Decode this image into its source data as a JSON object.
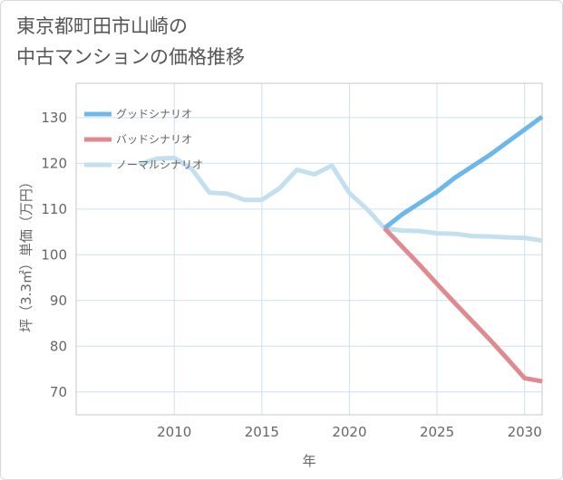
{
  "chart_data": {
    "type": "line",
    "title_lines": [
      "東京都町田市山崎の",
      "中古マンションの価格推移"
    ],
    "xlabel": "年",
    "ylabel": "坪（3.3㎡）単価（万円）",
    "xlim": [
      2004.4,
      2031.0
    ],
    "ylim": [
      65,
      137.5
    ],
    "xticks": [
      2010,
      2015,
      2020,
      2025,
      2030
    ],
    "yticks": [
      70,
      80,
      90,
      100,
      110,
      120,
      130
    ],
    "series": [
      {
        "name": "グッドシナリオ",
        "color": "#6cb8ec",
        "points": [
          [
            2022,
            105.8
          ],
          [
            2023,
            108.8
          ],
          [
            2024,
            111.3
          ],
          [
            2025,
            113.8
          ],
          [
            2026,
            116.8
          ],
          [
            2027,
            119.3
          ],
          [
            2028,
            121.8
          ],
          [
            2029,
            124.6
          ],
          [
            2030,
            127.4
          ],
          [
            2031,
            130.2
          ]
        ]
      },
      {
        "name": "バッドシナリオ",
        "color": "#e0898f",
        "points": [
          [
            2022,
            105.8
          ],
          [
            2023,
            101.8
          ],
          [
            2024,
            97.8
          ],
          [
            2025,
            93.6
          ],
          [
            2026,
            89.5
          ],
          [
            2027,
            85.5
          ],
          [
            2028,
            81.5
          ],
          [
            2029,
            77.3
          ],
          [
            2030,
            73.0
          ],
          [
            2031,
            72.3
          ]
        ]
      },
      {
        "name": "ノーマルシナリオ",
        "color": "#c4e0ef",
        "points": [
          [
            2008,
            119.8
          ],
          [
            2009,
            121.0
          ],
          [
            2010,
            121.2
          ],
          [
            2011,
            118.8
          ],
          [
            2012,
            113.6
          ],
          [
            2013,
            113.4
          ],
          [
            2014,
            112.0
          ],
          [
            2015,
            112.0
          ],
          [
            2016,
            114.5
          ],
          [
            2017,
            118.6
          ],
          [
            2018,
            117.6
          ],
          [
            2019,
            119.5
          ],
          [
            2020,
            113.5
          ],
          [
            2021,
            110.0
          ],
          [
            2022,
            105.8
          ],
          [
            2023,
            105.3
          ],
          [
            2024,
            105.2
          ],
          [
            2025,
            104.7
          ],
          [
            2026,
            104.6
          ],
          [
            2027,
            104.1
          ],
          [
            2028,
            104.0
          ],
          [
            2029,
            103.8
          ],
          [
            2030,
            103.7
          ],
          [
            2031,
            103.1
          ]
        ]
      }
    ]
  }
}
